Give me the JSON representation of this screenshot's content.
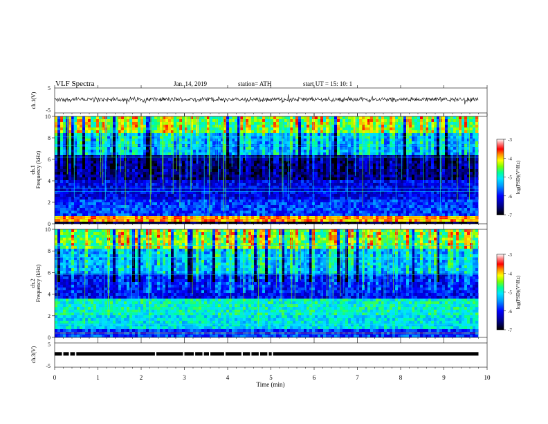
{
  "header": {
    "title": "VLF  Spectra",
    "date": "Jan. 14, 2019",
    "station": "station= ATH",
    "start": "start  UT  =   15: 10: 1"
  },
  "colors": {
    "black": "#000000",
    "spectrogram_palette": [
      "#000000",
      "#00008b",
      "#0000ff",
      "#0096ff",
      "#00e6ff",
      "#00ff96",
      "#7dff00",
      "#ffff00",
      "#ff8c00",
      "#ff0000",
      "#ff8080",
      "#ffffff"
    ]
  },
  "chart_data": [
    {
      "type": "line",
      "name": "ch1-waveform",
      "ylabel": "ch.1(V)",
      "ylim": [
        -5,
        5
      ],
      "yticks": [
        "5",
        "-5"
      ],
      "x_range_min": [
        0,
        9.8
      ],
      "baseline_v": 0.4,
      "amplitude_v": [
        0.5,
        2.5
      ]
    },
    {
      "type": "heatmap",
      "name": "ch1-spectrogram",
      "ylabel": "Frequency  (kHz)",
      "channel_label": "ch.1",
      "ylim": [
        0,
        10
      ],
      "yticks": [
        "10",
        "8",
        "6",
        "4",
        "2",
        "0"
      ],
      "x_range_min": [
        0,
        9.8
      ],
      "colorbar": {
        "label": "log(PSD)(V²/Hz)",
        "ticks": [
          "-3",
          "-4",
          "-5",
          "-6",
          "-7"
        ],
        "range": [
          -7,
          -3
        ]
      }
    },
    {
      "type": "heatmap",
      "name": "ch2-spectrogram",
      "ylabel": "Frequency  (kHz)",
      "channel_label": "ch.2",
      "ylim": [
        0,
        10
      ],
      "yticks": [
        "10",
        "8",
        "6",
        "4",
        "2",
        "0"
      ],
      "x_range_min": [
        0,
        9.8
      ],
      "colorbar": {
        "label": "log(PSD)(V²/Hz)",
        "ticks": [
          "-3",
          "-4",
          "-5",
          "-6",
          "-7"
        ],
        "range": [
          -7,
          -3
        ]
      }
    },
    {
      "type": "line",
      "name": "ch3-signal",
      "ylabel": "ch.3(V)",
      "ylim": [
        -5,
        5
      ],
      "yticks": [
        "5",
        "-5"
      ],
      "x_range_min": [
        0,
        9.8
      ],
      "level_v": 0.5
    }
  ],
  "xaxis": {
    "label": "Time  (min)",
    "ticks": [
      "0",
      "1",
      "2",
      "3",
      "4",
      "5",
      "6",
      "7",
      "8",
      "9",
      "10"
    ],
    "range": [
      0,
      10
    ]
  }
}
